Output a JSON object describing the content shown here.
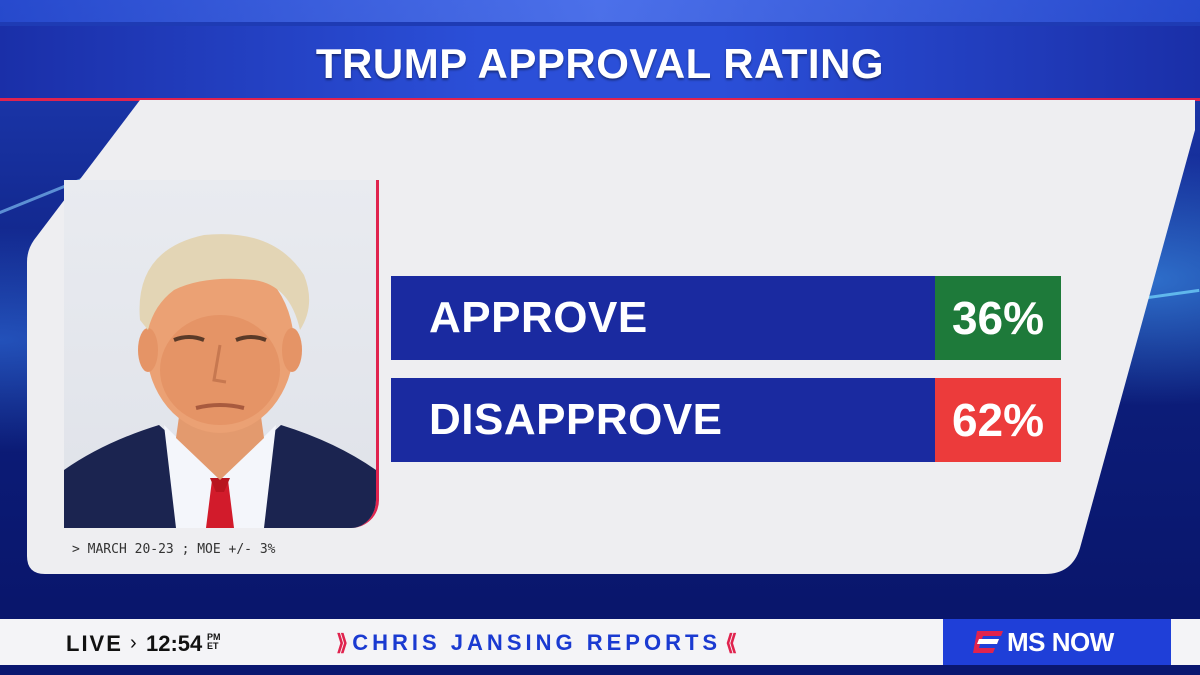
{
  "header": {
    "title": "TRUMP APPROVAL RATING"
  },
  "poll": {
    "rows": [
      {
        "label": "APPROVE",
        "value": "36%",
        "color": "#1e7a3a"
      },
      {
        "label": "DISAPPROVE",
        "value": "62%",
        "color": "#ec3b3b"
      }
    ],
    "note": "> MARCH 20-23 ; MOE +/- 3%"
  },
  "ticker": {
    "live": "LIVE",
    "time": "12:54",
    "ampm": "PM",
    "tz": "ET",
    "open_marks": "⟫",
    "show": "CHRIS JANSING REPORTS",
    "close_marks": "⟪",
    "network": "MS NOW"
  },
  "colors": {
    "accent": "#e0234e",
    "bar_blue": "#1a2aa0",
    "brand_blue": "#1f3fd8"
  }
}
